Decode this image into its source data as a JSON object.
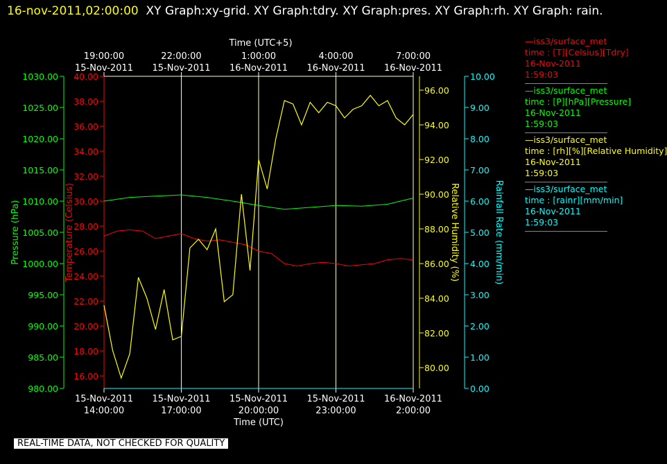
{
  "header": {
    "date": "16-nov-2011,02:00:00",
    "titles": "XY Graph:xy-grid.  XY Graph:tdry.  XY Graph:pres.  XY Graph:rh.  XY Graph: rain."
  },
  "footer_note": "REAL-TIME DATA, NOT CHECKED FOR QUALITY",
  "colors": {
    "tdry": "#ff0000",
    "pres": "#00ff00",
    "rh": "#ffff00",
    "rain": "#00ffff",
    "grid": "#ffffcc"
  },
  "legend": [
    {
      "line1": "—iss3/surface_met",
      "line2": "time : [T][Celsius][Tdry]",
      "line3": "16-Nov-2011",
      "line4": "1:59:03",
      "color": "#ff0000"
    },
    {
      "line1": "—iss3/surface_met",
      "line2": "time : [P][hPa][Pressure]",
      "line3": "16-Nov-2011",
      "line4": "1:59:03",
      "color": "#00ff00"
    },
    {
      "line1": "—iss3/surface_met",
      "line2": "time : [rh][%][Relative Humidity]",
      "line3": "16-Nov-2011",
      "line4": "1:59:03",
      "color": "#ffff00"
    },
    {
      "line1": "—iss3/surface_met",
      "line2": "time : [rainr][mm/min]",
      "line3": "16-Nov-2011",
      "line4": "1:59:03",
      "color": "#00ffff"
    }
  ],
  "chart_data": {
    "type": "line",
    "title": "",
    "xlabel": "Time (UTC)",
    "xlabel_top": "Time (UTC+5)",
    "x_ticks_bottom": [
      {
        "date": "15-Nov-2011",
        "time": "14:00:00"
      },
      {
        "date": "15-Nov-2011",
        "time": "17:00:00"
      },
      {
        "date": "15-Nov-2011",
        "time": "20:00:00"
      },
      {
        "date": "15-Nov-2011",
        "time": "23:00:00"
      },
      {
        "date": "16-Nov-2011",
        "time": "2:00:00"
      }
    ],
    "x_ticks_top": [
      {
        "date": "15-Nov-2011",
        "time": "19:00:00"
      },
      {
        "date": "15-Nov-2011",
        "time": "22:00:00"
      },
      {
        "date": "16-Nov-2011",
        "time": "1:00:00"
      },
      {
        "date": "16-Nov-2011",
        "time": "4:00:00"
      },
      {
        "date": "16-Nov-2011",
        "time": "7:00:00"
      }
    ],
    "x_range_utc": [
      "15-Nov-2011 14:00:00",
      "16-Nov-2011 02:00:00"
    ],
    "grid": true,
    "axes": {
      "pres": {
        "label": "Pressure (hPa)",
        "range": [
          980,
          1030
        ],
        "ticks": [
          "980.00",
          "985.00",
          "990.00",
          "995.00",
          "1000.00",
          "1005.00",
          "1010.00",
          "1015.00",
          "1020.00",
          "1025.00",
          "1030.00"
        ]
      },
      "tdry": {
        "label": "Temperature (Celsius)",
        "range": [
          15,
          40
        ],
        "ticks": [
          "16.00",
          "18.00",
          "20.00",
          "22.00",
          "24.00",
          "26.00",
          "28.00",
          "30.00",
          "32.00",
          "34.00",
          "36.00",
          "38.00",
          "40.00"
        ]
      },
      "rh": {
        "label": "Relative Humidity (%)",
        "range": [
          78.8,
          96.8
        ],
        "ticks": [
          "80.00",
          "82.00",
          "84.00",
          "86.00",
          "88.00",
          "90.00",
          "92.00",
          "94.00",
          "96.00"
        ]
      },
      "rain": {
        "label": "Rainfall Rate (mm/min)",
        "range": [
          0,
          10
        ],
        "ticks": [
          "0.00",
          "1.00",
          "2.00",
          "3.00",
          "4.00",
          "5.00",
          "6.00",
          "7.00",
          "8.00",
          "9.00",
          "10.00"
        ]
      }
    },
    "series": [
      {
        "name": "iss3/surface_met time : [T][Celsius][Tdry]",
        "axis": "tdry",
        "x": [
          "15-Nov-2011 14:00",
          "15-Nov-2011 14:30",
          "15-Nov-2011 15:00",
          "15-Nov-2011 15:30",
          "15-Nov-2011 16:00",
          "15-Nov-2011 16:30",
          "15-Nov-2011 17:00",
          "15-Nov-2011 17:30",
          "15-Nov-2011 18:00",
          "15-Nov-2011 18:30",
          "15-Nov-2011 19:00",
          "15-Nov-2011 19:30",
          "15-Nov-2011 20:00",
          "15-Nov-2011 20:30",
          "15-Nov-2011 21:00",
          "15-Nov-2011 21:30",
          "15-Nov-2011 22:00",
          "15-Nov-2011 22:30",
          "15-Nov-2011 23:00",
          "15-Nov-2011 23:30",
          "16-Nov-2011 00:00",
          "16-Nov-2011 00:30",
          "16-Nov-2011 01:00",
          "16-Nov-2011 01:30",
          "16-Nov-2011 02:00"
        ],
        "values": [
          27.2,
          27.6,
          27.7,
          27.6,
          27.0,
          27.2,
          27.4,
          27.0,
          26.8,
          26.9,
          26.7,
          26.5,
          26.0,
          25.8,
          25.0,
          24.8,
          25.0,
          25.1,
          25.0,
          24.8,
          24.9,
          25.0,
          25.3,
          25.4,
          25.3
        ]
      },
      {
        "name": "iss3/surface_met time : [P][hPa][Pressure]",
        "axis": "pres",
        "x": [
          "15-Nov-2011 14:00",
          "15-Nov-2011 15:00",
          "15-Nov-2011 16:00",
          "15-Nov-2011 17:00",
          "15-Nov-2011 18:00",
          "15-Nov-2011 19:00",
          "15-Nov-2011 20:00",
          "15-Nov-2011 21:00",
          "15-Nov-2011 22:00",
          "15-Nov-2011 23:00",
          "16-Nov-2011 00:00",
          "16-Nov-2011 01:00",
          "16-Nov-2011 02:00"
        ],
        "values": [
          1010.0,
          1010.6,
          1010.8,
          1011.0,
          1010.6,
          1010.0,
          1009.3,
          1008.7,
          1009.0,
          1009.3,
          1009.2,
          1009.5,
          1010.5
        ]
      },
      {
        "name": "iss3/surface_met time : [rh][%][Relative Humidity]",
        "axis": "rh",
        "x": [
          "15-Nov-2011 14:00",
          "15-Nov-2011 14:20",
          "15-Nov-2011 14:40",
          "15-Nov-2011 15:00",
          "15-Nov-2011 15:20",
          "15-Nov-2011 15:40",
          "15-Nov-2011 16:00",
          "15-Nov-2011 16:20",
          "15-Nov-2011 16:40",
          "15-Nov-2011 17:00",
          "15-Nov-2011 17:20",
          "15-Nov-2011 17:40",
          "15-Nov-2011 18:00",
          "15-Nov-2011 18:20",
          "15-Nov-2011 18:40",
          "15-Nov-2011 19:00",
          "15-Nov-2011 19:20",
          "15-Nov-2011 19:40",
          "15-Nov-2011 20:00",
          "15-Nov-2011 20:20",
          "15-Nov-2011 20:40",
          "15-Nov-2011 21:00",
          "15-Nov-2011 21:20",
          "15-Nov-2011 21:40",
          "15-Nov-2011 22:00",
          "15-Nov-2011 22:20",
          "15-Nov-2011 22:40",
          "15-Nov-2011 23:00",
          "15-Nov-2011 23:20",
          "15-Nov-2011 23:40",
          "16-Nov-2011 00:00",
          "16-Nov-2011 00:20",
          "16-Nov-2011 00:40",
          "16-Nov-2011 01:00",
          "16-Nov-2011 01:20",
          "16-Nov-2011 01:40",
          "16-Nov-2011 02:00"
        ],
        "values": [
          83.6,
          81.0,
          79.4,
          80.8,
          85.2,
          84.0,
          82.2,
          84.5,
          81.6,
          81.8,
          86.9,
          87.4,
          86.8,
          88.0,
          83.8,
          84.2,
          90.0,
          85.6,
          92.0,
          90.3,
          93.2,
          95.4,
          95.2,
          94.0,
          95.3,
          94.7,
          95.3,
          95.1,
          94.4,
          94.9,
          95.1,
          95.7,
          95.1,
          95.4,
          94.4,
          94.0,
          94.6
        ]
      },
      {
        "name": "iss3/surface_met time : [rainr][mm/min]",
        "axis": "rain",
        "x": [
          "15-Nov-2011 14:00",
          "16-Nov-2011 02:00"
        ],
        "values": [
          0.0,
          0.0
        ]
      }
    ]
  }
}
